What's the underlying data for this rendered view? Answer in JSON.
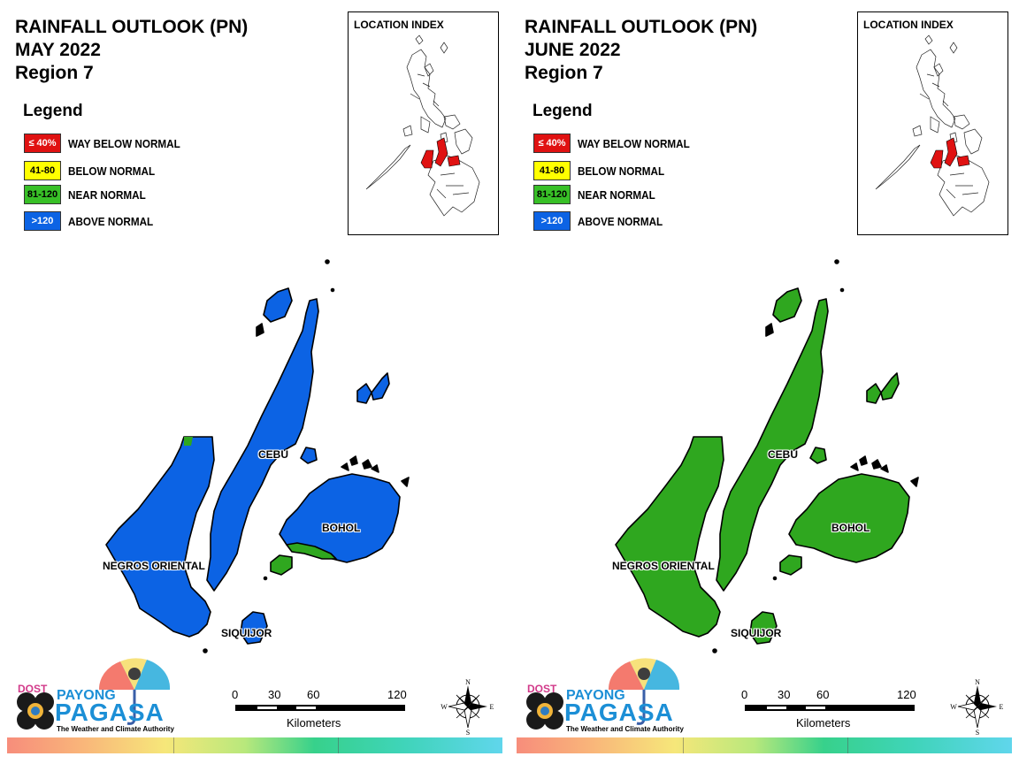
{
  "panels": [
    {
      "title": [
        "RAINFALL OUTLOOK (PN)",
        "MAY 2022",
        "Region 7"
      ],
      "fill_color": "#0c63e4"
    },
    {
      "title": [
        "RAINFALL OUTLOOK (PN)",
        "JUNE 2022",
        "Region 7"
      ],
      "fill_color": "#2fa71f"
    }
  ],
  "legend": {
    "title": "Legend",
    "items": [
      {
        "code": "≤ 40%",
        "label": "WAY BELOW NORMAL",
        "color": "#e01212",
        "text_color": "#ffffff"
      },
      {
        "code": "41-80",
        "label": "BELOW NORMAL",
        "color": "#ffff00",
        "text_color": "#000000"
      },
      {
        "code": "81-120",
        "label": "NEAR NORMAL",
        "color": "#38c027",
        "text_color": "#000000"
      },
      {
        "code": ">120",
        "label": "ABOVE NORMAL",
        "color": "#0c63e4",
        "text_color": "#ffffff"
      }
    ]
  },
  "location_index": {
    "title": "LOCATION INDEX",
    "highlight_color": "#e01212"
  },
  "places": {
    "cebu": "CEBU",
    "bohol": "BOHOL",
    "negros": "NEGROS ORIENTAL",
    "siquijor": "SIQUIJOR"
  },
  "scale": {
    "ticks": [
      "0",
      "30",
      "60",
      "120"
    ],
    "unit": "Kilometers"
  },
  "compass": {
    "n": "N",
    "s": "S",
    "e": "E",
    "w": "W"
  },
  "logo": {
    "dost": "DOST",
    "payong": "PAYONG",
    "pagasa": "PAGASA",
    "tagline": "The Weather and Climate Authority"
  },
  "near_normal_color": "#2fa71f"
}
